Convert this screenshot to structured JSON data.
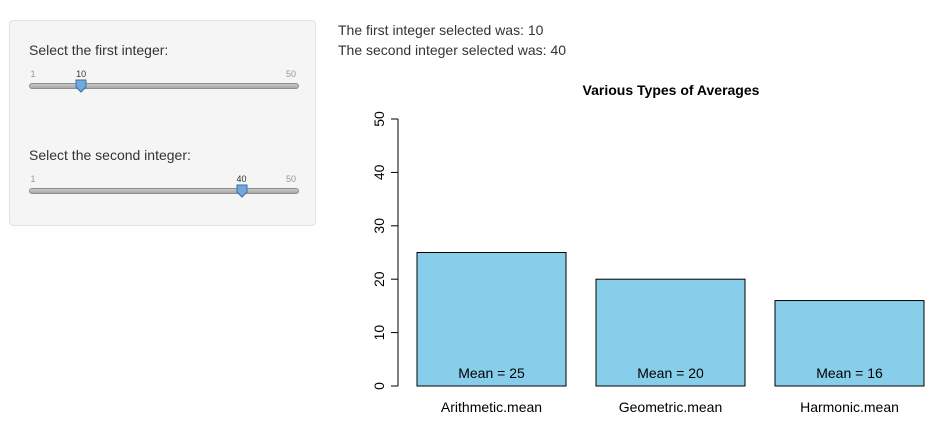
{
  "sidebar": {
    "slider1": {
      "label": "Select the first integer:",
      "min": 1,
      "max": 50,
      "value": 10,
      "min_label": "1",
      "max_label": "50",
      "value_label": "10"
    },
    "slider2": {
      "label": "Select the second integer:",
      "min": 1,
      "max": 50,
      "value": 40,
      "min_label": "1",
      "max_label": "50",
      "value_label": "40"
    }
  },
  "output": {
    "line1": "The first integer selected was: 10",
    "line2": "The second integer selected was: 40"
  },
  "colors": {
    "bar_fill": "#87ceeb",
    "slider_handle": "#6fa8dc"
  },
  "chart_data": {
    "type": "bar",
    "title": "Various Types of Averages",
    "categories": [
      "Arithmetic.mean",
      "Geometric.mean",
      "Harmonic.mean"
    ],
    "values": [
      25,
      20,
      16
    ],
    "bar_labels": [
      "Mean =  25",
      "Mean =  20",
      "Mean =  16"
    ],
    "ylim": [
      0,
      50
    ],
    "yticks": [
      "0",
      "10",
      "20",
      "30",
      "40",
      "50"
    ],
    "xlabel": "",
    "ylabel": "",
    "grid": false
  }
}
